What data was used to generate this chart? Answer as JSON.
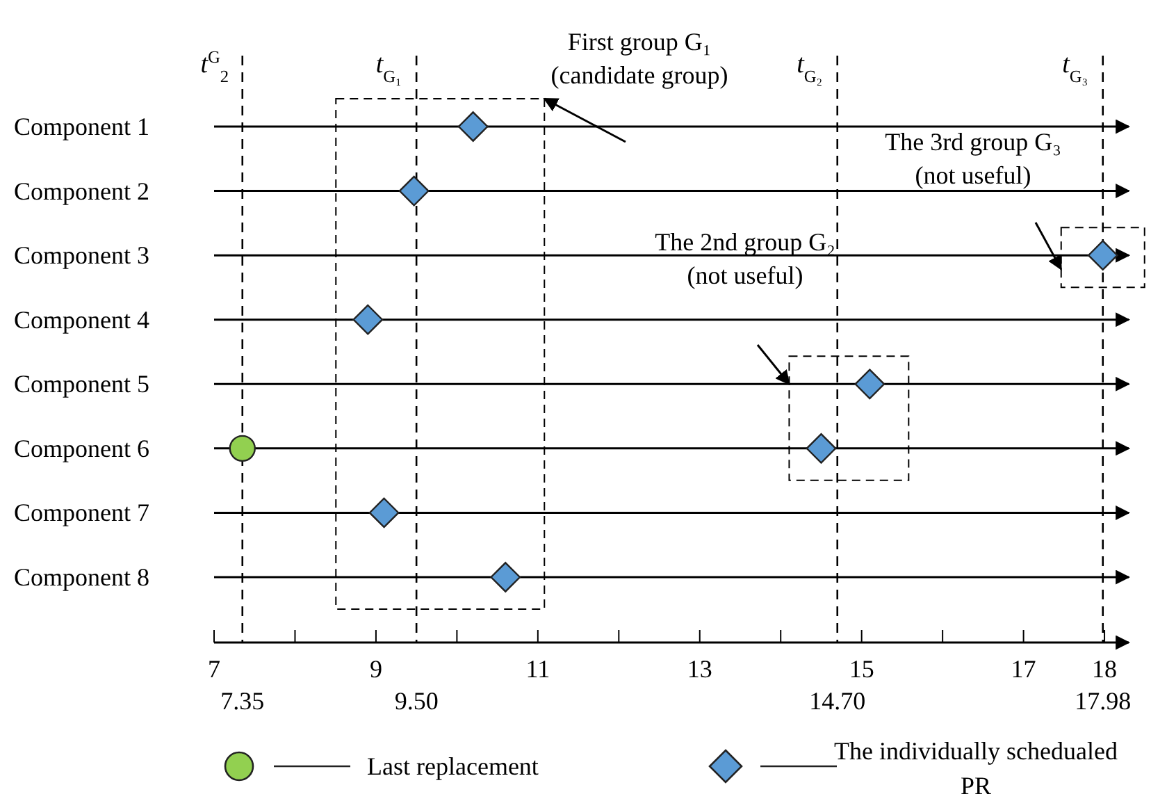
{
  "chart_data": {
    "type": "scatter",
    "orientation": "horizontal",
    "categories": [
      "Component  1",
      "Component  2",
      "Component  3",
      "Component  4",
      "Component  5",
      "Component  6",
      "Component  7",
      "Component  8"
    ],
    "series": [
      {
        "name": "Last replacement",
        "color": "#92d050",
        "marker": "circle",
        "values": [
          null,
          null,
          null,
          null,
          null,
          7.35,
          null,
          null
        ]
      },
      {
        "name": "The individually schedualed PR",
        "color": "#5b9bd5",
        "marker": "diamond",
        "values": [
          10.2,
          9.47,
          17.98,
          8.9,
          15.1,
          14.5,
          9.1,
          10.6
        ]
      }
    ],
    "xlim": [
      7,
      18.3
    ],
    "xticks": [
      7,
      {
        "value": 8,
        "label": null
      },
      9,
      {
        "value": 10,
        "label": null
      },
      11,
      {
        "value": 12,
        "label": null
      },
      13,
      {
        "value": 14,
        "label": null
      },
      15,
      {
        "value": 16,
        "label": null
      },
      17,
      18
    ],
    "grid": "y",
    "legend": "bottom",
    "ref_lines": [
      {
        "axis": "x",
        "value": 7.35,
        "label": "7.35",
        "line_style": "dashed"
      },
      {
        "axis": "x",
        "value": 9.5,
        "label": "9.50",
        "line_style": "dashed"
      },
      {
        "axis": "x",
        "value": 14.7,
        "label": "14.70",
        "line_style": "dashed"
      },
      {
        "axis": "x",
        "value": 17.98,
        "label": "17.98",
        "line_style": "dashed"
      }
    ],
    "annotations": [
      "First group G₁\n(candidate group)",
      "The 2nd group G₂\n(not useful)",
      "The 3rd group G₃\n(not useful)",
      "t$^{G}$$_{2}$",
      "t$_{G₁}$",
      "t$_{G₂}$",
      "t$_{G₃}$"
    ]
  }
}
